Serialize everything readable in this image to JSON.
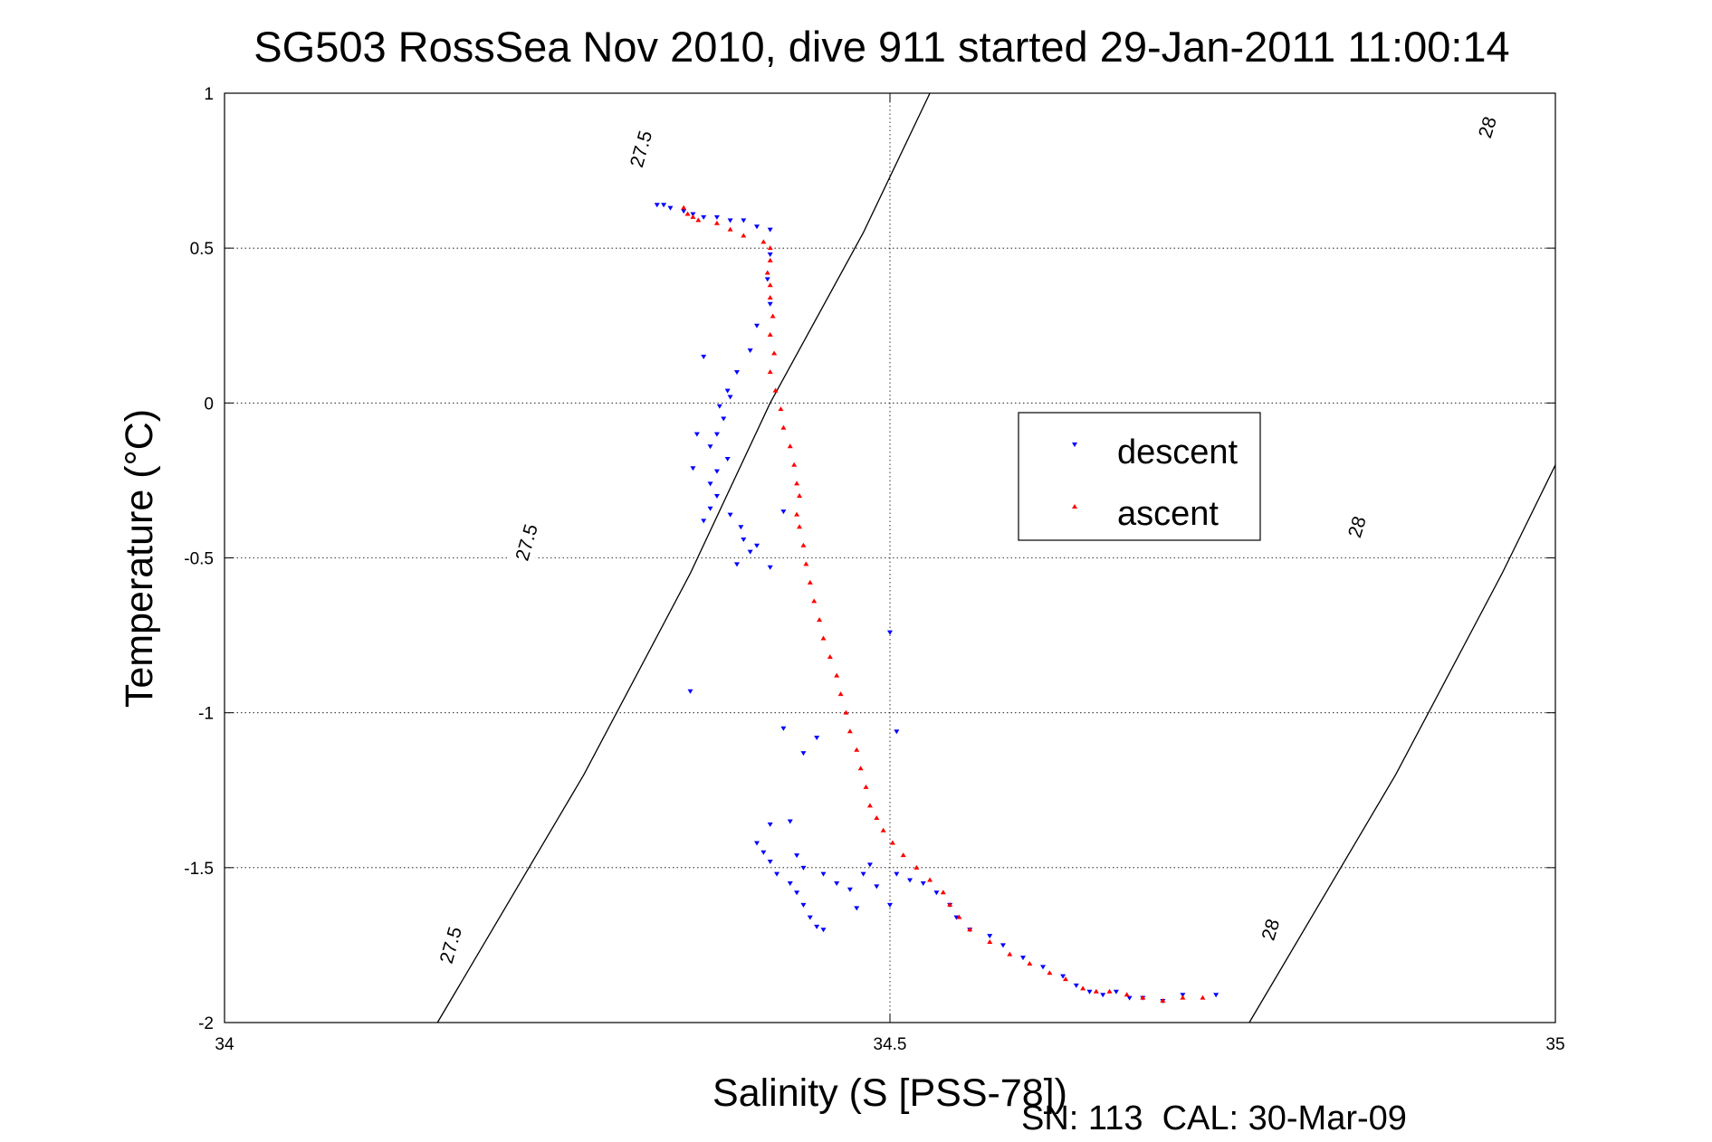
{
  "chart_data": {
    "type": "scatter",
    "title": "SG503 RossSea Nov 2010, dive 911 started 29-Jan-2011 11:00:14",
    "xlabel": "Salinity (S [PSS-78])",
    "ylabel": "Temperature (°C)",
    "xlim": [
      34,
      35
    ],
    "ylim": [
      -2,
      1
    ],
    "xticks": [
      34,
      34.5,
      35
    ],
    "xtick_labels": [
      "34",
      "34.5",
      "35"
    ],
    "yticks": [
      1,
      0.5,
      0,
      -0.5,
      -1,
      -1.5,
      -2
    ],
    "ytick_labels": [
      "1",
      "0.5",
      "0",
      "-0.5",
      "-1",
      "-1.5",
      "-2"
    ],
    "grid": true,
    "legend": {
      "position": "center-right",
      "entries": [
        "descent",
        "ascent"
      ]
    },
    "colors": {
      "descent": "#0000ff",
      "ascent": "#ff0000",
      "contour": "#000000"
    },
    "contours": [
      {
        "level": "27.5",
        "points": [
          [
            34.16,
            -2
          ],
          [
            34.27,
            -1.2
          ],
          [
            34.35,
            -0.55
          ],
          [
            34.41,
            0
          ],
          [
            34.48,
            0.55
          ],
          [
            34.53,
            1
          ]
        ]
      },
      {
        "level": "28",
        "points": [
          [
            34.77,
            -2
          ],
          [
            34.88,
            -1.2
          ],
          [
            34.96,
            -0.55
          ],
          [
            35.0,
            -0.2
          ]
        ]
      }
    ],
    "contour_labels": [
      {
        "text": "27.5",
        "x": 34.313,
        "y": 0.82
      },
      {
        "text": "27.5",
        "x": 34.227,
        "y": -0.45
      },
      {
        "text": "27.5",
        "x": 34.17,
        "y": -1.75
      },
      {
        "text": "28",
        "x": 34.949,
        "y": 0.89
      },
      {
        "text": "28",
        "x": 34.851,
        "y": -0.4
      },
      {
        "text": "28",
        "x": 34.786,
        "y": -1.7
      }
    ],
    "series": [
      {
        "name": "descent",
        "marker": "triangle-down",
        "points": [
          [
            34.325,
            0.64
          ],
          [
            34.33,
            0.64
          ],
          [
            34.335,
            0.63
          ],
          [
            34.345,
            0.62
          ],
          [
            34.352,
            0.61
          ],
          [
            34.36,
            0.6
          ],
          [
            34.37,
            0.6
          ],
          [
            34.38,
            0.59
          ],
          [
            34.39,
            0.59
          ],
          [
            34.4,
            0.57
          ],
          [
            34.41,
            0.56
          ],
          [
            34.41,
            0.48
          ],
          [
            34.408,
            0.4
          ],
          [
            34.41,
            0.32
          ],
          [
            34.4,
            0.25
          ],
          [
            34.395,
            0.17
          ],
          [
            34.385,
            0.1
          ],
          [
            34.378,
            0.04
          ],
          [
            34.372,
            -0.01
          ],
          [
            34.38,
            0.02
          ],
          [
            34.375,
            -0.05
          ],
          [
            34.37,
            -0.1
          ],
          [
            34.365,
            -0.14
          ],
          [
            34.378,
            -0.18
          ],
          [
            34.37,
            -0.22
          ],
          [
            34.365,
            -0.26
          ],
          [
            34.37,
            -0.3
          ],
          [
            34.365,
            -0.34
          ],
          [
            34.36,
            -0.38
          ],
          [
            34.352,
            -0.21
          ],
          [
            34.355,
            -0.1
          ],
          [
            34.36,
            0.15
          ],
          [
            34.38,
            -0.36
          ],
          [
            34.388,
            -0.4
          ],
          [
            34.39,
            -0.44
          ],
          [
            34.395,
            -0.48
          ],
          [
            34.385,
            -0.52
          ],
          [
            34.4,
            -0.46
          ],
          [
            34.41,
            -0.53
          ],
          [
            34.42,
            -0.35
          ],
          [
            34.35,
            -0.93
          ],
          [
            34.42,
            -1.05
          ],
          [
            34.435,
            -1.13
          ],
          [
            34.445,
            -1.08
          ],
          [
            34.5,
            -0.74
          ],
          [
            34.505,
            -1.06
          ],
          [
            34.4,
            -1.42
          ],
          [
            34.405,
            -1.45
          ],
          [
            34.41,
            -1.48
          ],
          [
            34.415,
            -1.52
          ],
          [
            34.425,
            -1.55
          ],
          [
            34.43,
            -1.58
          ],
          [
            34.435,
            -1.62
          ],
          [
            34.44,
            -1.66
          ],
          [
            34.445,
            -1.69
          ],
          [
            34.45,
            -1.7
          ],
          [
            34.41,
            -1.36
          ],
          [
            34.425,
            -1.35
          ],
          [
            34.43,
            -1.46
          ],
          [
            34.435,
            -1.5
          ],
          [
            34.45,
            -1.52
          ],
          [
            34.46,
            -1.55
          ],
          [
            34.47,
            -1.57
          ],
          [
            34.48,
            -1.52
          ],
          [
            34.475,
            -1.63
          ],
          [
            34.485,
            -1.49
          ],
          [
            34.49,
            -1.56
          ],
          [
            34.5,
            -1.62
          ],
          [
            34.505,
            -1.52
          ],
          [
            34.515,
            -1.54
          ],
          [
            34.525,
            -1.55
          ],
          [
            34.535,
            -1.58
          ],
          [
            34.545,
            -1.62
          ],
          [
            34.55,
            -1.66
          ],
          [
            34.56,
            -1.7
          ],
          [
            34.575,
            -1.72
          ],
          [
            34.585,
            -1.75
          ],
          [
            34.6,
            -1.79
          ],
          [
            34.615,
            -1.82
          ],
          [
            34.63,
            -1.85
          ],
          [
            34.64,
            -1.88
          ],
          [
            34.65,
            -1.9
          ],
          [
            34.66,
            -1.91
          ],
          [
            34.67,
            -1.9
          ],
          [
            34.68,
            -1.92
          ],
          [
            34.69,
            -1.92
          ],
          [
            34.705,
            -1.93
          ],
          [
            34.72,
            -1.91
          ],
          [
            34.745,
            -1.91
          ]
        ]
      },
      {
        "name": "ascent",
        "marker": "triangle-up",
        "points": [
          [
            34.345,
            0.63
          ],
          [
            34.348,
            0.61
          ],
          [
            34.352,
            0.6
          ],
          [
            34.356,
            0.59
          ],
          [
            34.37,
            0.58
          ],
          [
            34.38,
            0.56
          ],
          [
            34.39,
            0.54
          ],
          [
            34.405,
            0.52
          ],
          [
            34.41,
            0.5
          ],
          [
            34.41,
            0.46
          ],
          [
            34.408,
            0.42
          ],
          [
            34.41,
            0.38
          ],
          [
            34.41,
            0.34
          ],
          [
            34.412,
            0.28
          ],
          [
            34.41,
            0.22
          ],
          [
            34.413,
            0.16
          ],
          [
            34.41,
            0.1
          ],
          [
            34.414,
            0.04
          ],
          [
            34.418,
            -0.02
          ],
          [
            34.42,
            -0.08
          ],
          [
            34.425,
            -0.14
          ],
          [
            34.428,
            -0.2
          ],
          [
            34.43,
            -0.26
          ],
          [
            34.432,
            -0.3
          ],
          [
            34.43,
            -0.36
          ],
          [
            34.432,
            -0.4
          ],
          [
            34.435,
            -0.46
          ],
          [
            34.437,
            -0.52
          ],
          [
            34.44,
            -0.58
          ],
          [
            34.443,
            -0.64
          ],
          [
            34.447,
            -0.7
          ],
          [
            34.45,
            -0.76
          ],
          [
            34.455,
            -0.82
          ],
          [
            34.46,
            -0.88
          ],
          [
            34.463,
            -0.94
          ],
          [
            34.467,
            -1.0
          ],
          [
            34.47,
            -1.06
          ],
          [
            34.475,
            -1.12
          ],
          [
            34.478,
            -1.18
          ],
          [
            34.482,
            -1.24
          ],
          [
            34.485,
            -1.3
          ],
          [
            34.49,
            -1.34
          ],
          [
            34.495,
            -1.38
          ],
          [
            34.502,
            -1.42
          ],
          [
            34.51,
            -1.46
          ],
          [
            34.52,
            -1.5
          ],
          [
            34.53,
            -1.54
          ],
          [
            34.54,
            -1.58
          ],
          [
            34.545,
            -1.62
          ],
          [
            34.552,
            -1.66
          ],
          [
            34.56,
            -1.7
          ],
          [
            34.575,
            -1.74
          ],
          [
            34.59,
            -1.78
          ],
          [
            34.605,
            -1.81
          ],
          [
            34.62,
            -1.84
          ],
          [
            34.632,
            -1.86
          ],
          [
            34.645,
            -1.89
          ],
          [
            34.655,
            -1.9
          ],
          [
            34.665,
            -1.9
          ],
          [
            34.678,
            -1.91
          ],
          [
            34.69,
            -1.92
          ],
          [
            34.705,
            -1.93
          ],
          [
            34.72,
            -1.92
          ],
          [
            34.735,
            -1.92
          ]
        ]
      }
    ]
  },
  "footer": {
    "text": "SN: 113  CAL: 30-Mar-09"
  }
}
